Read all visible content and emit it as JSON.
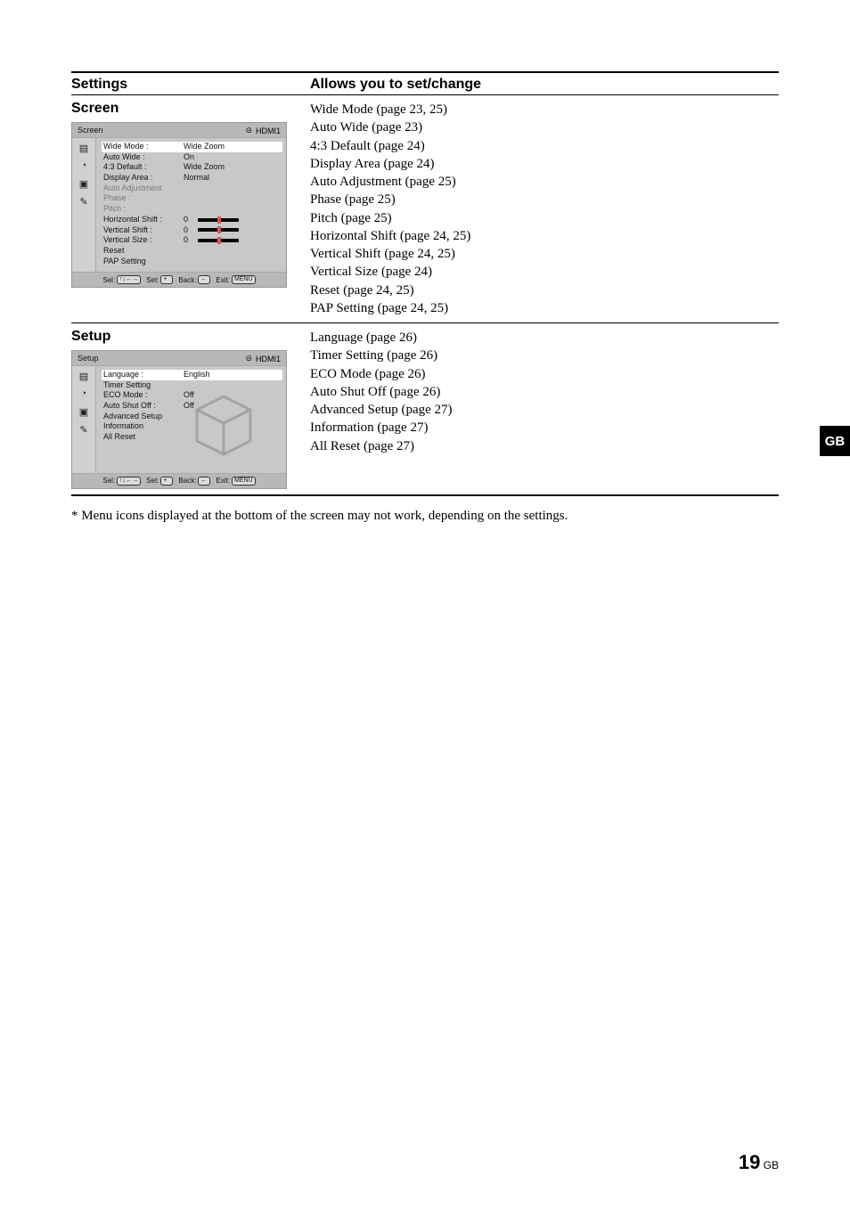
{
  "header": {
    "settings": "Settings",
    "allows": "Allows you to set/change"
  },
  "sideTab": "GB",
  "pageNumber": {
    "num": "19",
    "suffix": "GB"
  },
  "footnote": "*   Menu icons displayed at the bottom of the screen may not work, depending on the settings.",
  "screen": {
    "title": "Screen",
    "osd": {
      "name": "Screen",
      "source": "HDMI1",
      "rows": [
        {
          "label": "Wide Mode :",
          "value": "Wide Zoom",
          "selected": true
        },
        {
          "label": "Auto Wide :",
          "value": "On"
        },
        {
          "label": "4:3 Default :",
          "value": "Wide Zoom"
        },
        {
          "label": "Display Area :",
          "value": "Normal"
        },
        {
          "label": "Auto Adjustment",
          "value": "",
          "dim": true
        },
        {
          "label": "Phase :",
          "value": "",
          "dim": true
        },
        {
          "label": "Pitch :",
          "value": "",
          "dim": true
        },
        {
          "label": "Horizontal Shift :",
          "value": "0",
          "slider": true
        },
        {
          "label": "Vertical Shift :",
          "value": "0",
          "slider": true
        },
        {
          "label": "Vertical Size :",
          "value": "0",
          "slider": true
        },
        {
          "label": "Reset",
          "value": ""
        },
        {
          "label": "PAP Setting",
          "value": ""
        }
      ],
      "footer": {
        "sel": "Sel:",
        "set": "Set:",
        "back": "Back:",
        "exit": "Exit:",
        "menu": "MENU"
      }
    },
    "items": [
      "Wide Mode (page 23, 25)",
      "Auto Wide (page 23)",
      "4:3 Default (page 24)",
      "Display Area (page 24)",
      "Auto Adjustment (page 25)",
      "Phase (page 25)",
      "Pitch (page 25)",
      "Horizontal Shift (page 24, 25)",
      "Vertical Shift (page 24, 25)",
      "Vertical Size (page 24)",
      "Reset (page 24, 25)",
      "PAP Setting (page 24, 25)"
    ]
  },
  "setup": {
    "title": "Setup",
    "osd": {
      "name": "Setup",
      "source": "HDMI1",
      "rows": [
        {
          "label": "Language :",
          "value": "English",
          "selected": true
        },
        {
          "label": "Timer Setting",
          "value": ""
        },
        {
          "label": "ECO Mode :",
          "value": "Off"
        },
        {
          "label": "Auto Shut Off :",
          "value": "Off"
        },
        {
          "label": "Advanced Setup",
          "value": ""
        },
        {
          "label": "Information",
          "value": ""
        },
        {
          "label": "All Reset",
          "value": ""
        }
      ],
      "footer": {
        "sel": "Sel:",
        "set": "Set:",
        "back": "Back:",
        "exit": "Exit:",
        "menu": "MENU"
      }
    },
    "items": [
      "Language (page 26)",
      "Timer Setting (page 26)",
      "ECO Mode (page 26)",
      "Auto Shut Off (page 26)",
      "Advanced Setup (page 27)",
      "Information (page 27)",
      "All Reset (page 27)"
    ]
  }
}
